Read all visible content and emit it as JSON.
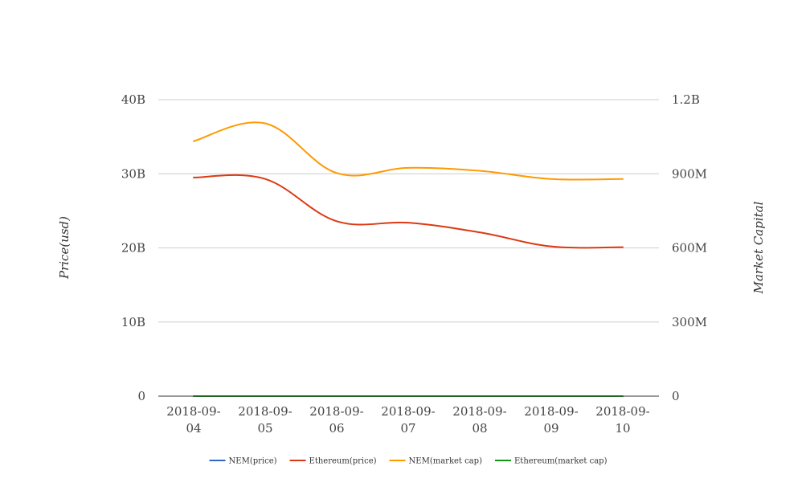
{
  "chart_data": {
    "type": "line",
    "title": "",
    "ylabel": "Price(usd)",
    "y2label": "Market Capital",
    "categories": [
      [
        "2018-09-",
        "04"
      ],
      [
        "2018-09-",
        "05"
      ],
      [
        "2018-09-",
        "06"
      ],
      [
        "2018-09-",
        "07"
      ],
      [
        "2018-09-",
        "08"
      ],
      [
        "2018-09-",
        "09"
      ],
      [
        "2018-09-",
        "10"
      ]
    ],
    "yaxis": {
      "ylim": [
        0,
        40000000000
      ],
      "ticks": [
        0,
        10000000000,
        20000000000,
        30000000000,
        40000000000
      ],
      "tick_labels": [
        "0",
        "10B",
        "20B",
        "30B",
        "40B"
      ]
    },
    "y2axis": {
      "ylim": [
        0,
        1200000000
      ],
      "ticks": [
        0,
        300000000,
        600000000,
        900000000,
        1200000000
      ],
      "tick_labels": [
        "0",
        "300M",
        "600M",
        "900M",
        "1.2B"
      ]
    },
    "grid": true,
    "legend_position": "bottom",
    "series": [
      {
        "name": "NEM(price)",
        "axis": "left",
        "color": "#3366cc",
        "values": [
          0.1,
          0.1,
          0.09,
          0.09,
          0.09,
          0.08,
          0.08
        ]
      },
      {
        "name": "Ethereum(price)",
        "axis": "left",
        "color": "#dc3912",
        "values": [
          29500000000,
          29300000000,
          23600000000,
          23400000000,
          22100000000,
          20200000000,
          20100000000
        ]
      },
      {
        "name": "NEM(market cap)",
        "axis": "left",
        "color": "#ff9900",
        "values": [
          34400000000,
          36800000000,
          30100000000,
          30800000000,
          30400000000,
          29300000000,
          29300000000
        ]
      },
      {
        "name": "Ethereum(market cap)",
        "axis": "right",
        "color": "#109618",
        "values": [
          1000,
          1000,
          1000,
          1000,
          1000,
          1000,
          1000
        ]
      }
    ]
  }
}
